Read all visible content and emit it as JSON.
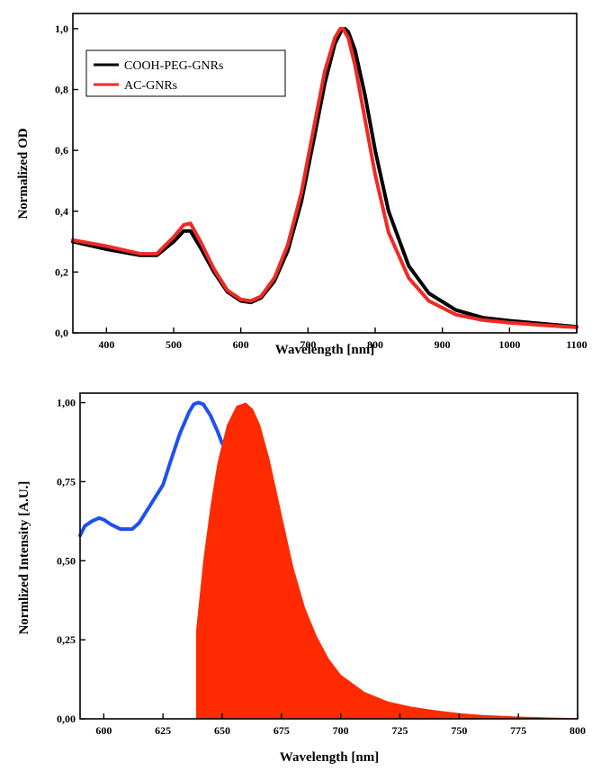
{
  "chart_data": [
    {
      "type": "line",
      "xlabel": "Wavelength [nm]",
      "ylabel": "Normalized OD",
      "xlim": [
        350,
        1100
      ],
      "ylim": [
        0.0,
        1.05
      ],
      "xticks": [
        400,
        500,
        600,
        700,
        800,
        900,
        1000,
        1100
      ],
      "xtick_labels": [
        "400",
        "500",
        "600",
        "700",
        "800",
        "900",
        "1000",
        "1100"
      ],
      "yticks": [
        0.0,
        0.2,
        0.4,
        0.6,
        0.8,
        1.0
      ],
      "ytick_labels": [
        "0,0",
        "0,2",
        "0,4",
        "0,6",
        "0,8",
        "1,0"
      ],
      "legend_position": "top-left",
      "series": [
        {
          "name": "COOH-PEG-GNRs",
          "color": "#000000",
          "x": [
            350,
            400,
            450,
            475,
            500,
            515,
            525,
            540,
            560,
            580,
            600,
            615,
            630,
            650,
            670,
            690,
            710,
            725,
            740,
            750,
            755,
            760,
            770,
            785,
            800,
            820,
            850,
            880,
            920,
            960,
            1000,
            1050,
            1100
          ],
          "y": [
            0.3,
            0.275,
            0.255,
            0.255,
            0.3,
            0.335,
            0.335,
            0.28,
            0.2,
            0.135,
            0.105,
            0.1,
            0.115,
            0.17,
            0.27,
            0.43,
            0.65,
            0.82,
            0.95,
            0.995,
            1.0,
            0.99,
            0.93,
            0.78,
            0.6,
            0.4,
            0.22,
            0.13,
            0.075,
            0.05,
            0.04,
            0.03,
            0.02
          ]
        },
        {
          "name": "AC-GNRs",
          "color": "#ee2a24",
          "x": [
            350,
            400,
            450,
            475,
            500,
            515,
            525,
            540,
            560,
            580,
            600,
            615,
            630,
            650,
            670,
            690,
            710,
            725,
            740,
            748,
            752,
            760,
            770,
            785,
            800,
            820,
            850,
            880,
            920,
            960,
            1000,
            1050,
            1100
          ],
          "y": [
            0.305,
            0.285,
            0.26,
            0.26,
            0.315,
            0.355,
            0.36,
            0.3,
            0.21,
            0.14,
            0.11,
            0.105,
            0.12,
            0.18,
            0.29,
            0.46,
            0.69,
            0.86,
            0.97,
            1.0,
            1.0,
            0.97,
            0.88,
            0.7,
            0.52,
            0.33,
            0.18,
            0.105,
            0.06,
            0.042,
            0.033,
            0.025,
            0.018
          ]
        }
      ]
    },
    {
      "type": "area",
      "xlabel": "Wavelength [nm]",
      "ylabel": "Normlized Intensity [A.U.]",
      "xlim": [
        590,
        800
      ],
      "ylim": [
        0.0,
        1.03
      ],
      "xticks": [
        600,
        625,
        650,
        675,
        700,
        725,
        750,
        775,
        800
      ],
      "xtick_labels": [
        "600",
        "625",
        "650",
        "675",
        "700",
        "725",
        "750",
        "775",
        "800"
      ],
      "yticks": [
        0.0,
        0.25,
        0.5,
        0.75,
        1.0
      ],
      "ytick_labels": [
        "0,00",
        "0,25",
        "0,50",
        "0,75",
        "1,00"
      ],
      "series": [
        {
          "kind": "line",
          "color": "#1f4ff2",
          "x": [
            590,
            592,
            595,
            598,
            600,
            603,
            607,
            612,
            615,
            620,
            625,
            628,
            632,
            636,
            638,
            640,
            642,
            645,
            648,
            650
          ],
          "y": [
            0.58,
            0.61,
            0.625,
            0.635,
            0.63,
            0.615,
            0.6,
            0.6,
            0.62,
            0.68,
            0.74,
            0.81,
            0.9,
            0.97,
            0.995,
            1.0,
            0.995,
            0.96,
            0.91,
            0.87
          ]
        },
        {
          "kind": "area",
          "color": "#ff2a00",
          "x": [
            639,
            639,
            642,
            645,
            648,
            652,
            656,
            660,
            663,
            666,
            670,
            675,
            680,
            685,
            690,
            695,
            700,
            710,
            720,
            730,
            740,
            750,
            760,
            775,
            790,
            800
          ],
          "y": [
            0.0,
            0.28,
            0.5,
            0.67,
            0.81,
            0.93,
            0.99,
            1.0,
            0.98,
            0.93,
            0.82,
            0.65,
            0.48,
            0.35,
            0.26,
            0.19,
            0.14,
            0.085,
            0.055,
            0.038,
            0.027,
            0.018,
            0.012,
            0.007,
            0.004,
            0.002
          ]
        }
      ]
    }
  ]
}
